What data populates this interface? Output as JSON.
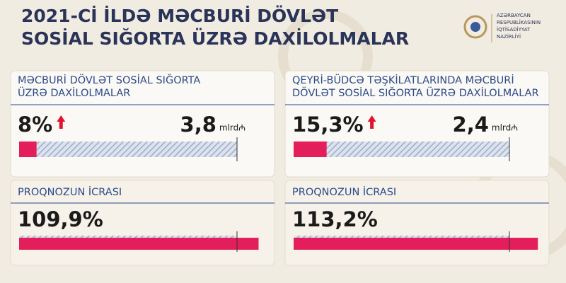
{
  "title": [
    "2021-Cİ İLDƏ MƏCBURİ DÖVLƏT",
    "SOSİAL SIĞORTA ÜZRƏ DAXİLOLMALAR"
  ],
  "logo_text": [
    "AZƏRBAYCAN",
    "RESPUBLİKASININ",
    "İQTİSADİYYAT",
    "NAZİRLİYİ"
  ],
  "xlim": [
    0,
    100
  ],
  "xticks": [
    100
  ],
  "panels": [
    {
      "heading": [
        "MƏCBURİ DÖVLƏT SOSİAL SIĞORTA",
        "ÜZRƏ DAXİLOLMALAR"
      ],
      "growth": {
        "value": 8,
        "label": "8%"
      },
      "amount": "3,8",
      "unit": "mlrd₼",
      "forecast_heading": "PROQNOZUN İCRASI",
      "forecast": {
        "value": 109.9,
        "label": "109,9%"
      }
    },
    {
      "heading": [
        "QEYRİ-BÜDCƏ TƏŞKİLATLARINDA MƏCBURİ",
        "DÖVLƏT SOSİAL SIĞORTA ÜZRƏ DAXİLOLMALAR"
      ],
      "growth": {
        "value": 15.3,
        "label": "15,3%"
      },
      "amount": "2,4",
      "unit": "mlrd₼",
      "forecast_heading": "PROQNOZUN İCRASI",
      "forecast": {
        "value": 113.2,
        "label": "113,2%"
      }
    }
  ]
}
